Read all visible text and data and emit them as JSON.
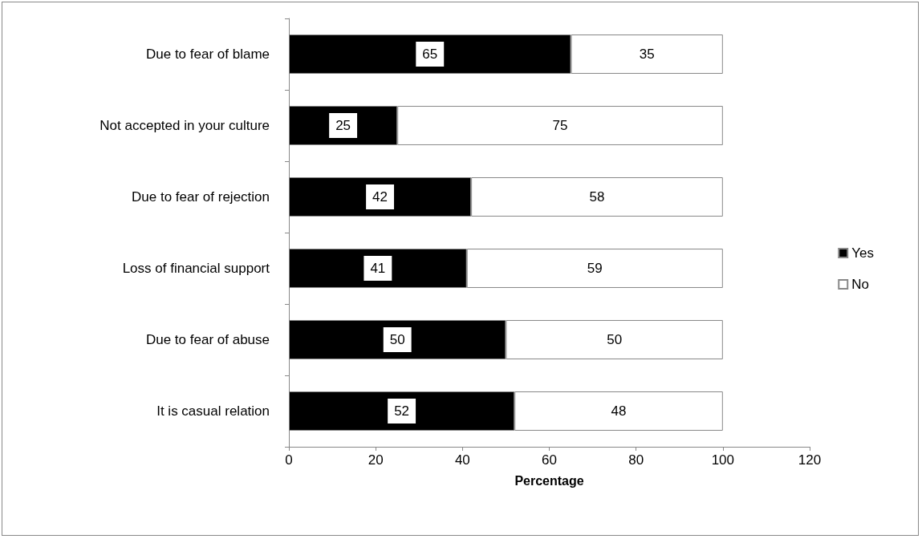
{
  "chart_data": {
    "type": "bar",
    "orientation": "horizontal",
    "stacked": true,
    "xlabel": "Percentage",
    "categories": [
      "Due to fear of blame",
      "Not accepted in your culture",
      "Due to fear of rejection",
      "Loss of financial support",
      "Due to fear of abuse",
      "It is casual relation"
    ],
    "series": [
      {
        "name": "Yes",
        "color": "#000000",
        "values": [
          65,
          25,
          42,
          41,
          50,
          52
        ]
      },
      {
        "name": "No",
        "color": "#ffffff",
        "values": [
          35,
          75,
          58,
          59,
          50,
          48
        ]
      }
    ],
    "xlim": [
      0,
      120
    ],
    "xticks": [
      0,
      20,
      40,
      60,
      80,
      100,
      120
    ],
    "grid": false,
    "legend": "right",
    "data_labels": true
  }
}
